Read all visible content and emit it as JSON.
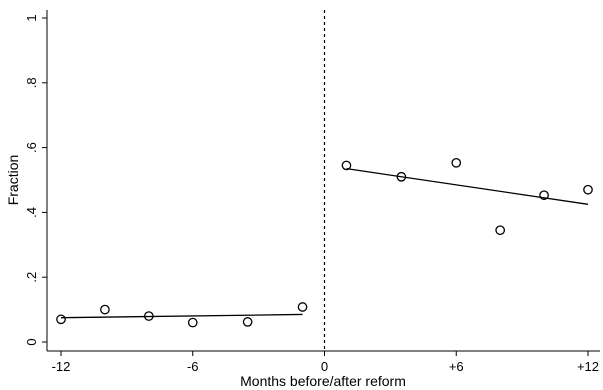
{
  "chart_data": {
    "type": "scatter",
    "title": "",
    "xlabel": "Months before/after reform",
    "ylabel": "Fraction",
    "xlim": [
      -12.5,
      12.5
    ],
    "ylim": [
      -0.02,
      1.02
    ],
    "x_ticks": [
      -12,
      -6,
      0,
      6,
      12
    ],
    "x_tick_labels": [
      "-12",
      "-6",
      "0",
      "+6",
      "+12"
    ],
    "y_ticks": [
      0,
      0.2,
      0.4,
      0.6,
      0.8,
      1
    ],
    "y_tick_labels": [
      "0",
      ".2",
      ".4",
      ".6",
      ".8",
      "1"
    ],
    "grid": false,
    "reference_line": {
      "x": 0,
      "style": "dashed"
    },
    "series": [
      {
        "points": [
          {
            "x": -12,
            "y": 0.07
          },
          {
            "x": -10,
            "y": 0.1
          },
          {
            "x": -8,
            "y": 0.08
          },
          {
            "x": -6,
            "y": 0.06
          },
          {
            "x": -3.5,
            "y": 0.062
          },
          {
            "x": -1,
            "y": 0.108
          }
        ],
        "fit": [
          [
            -12,
            0.075
          ],
          [
            -1,
            0.085
          ]
        ]
      },
      {
        "points": [
          {
            "x": 1,
            "y": 0.545
          },
          {
            "x": 3.5,
            "y": 0.51
          },
          {
            "x": 6,
            "y": 0.553
          },
          {
            "x": 8,
            "y": 0.345
          },
          {
            "x": 10,
            "y": 0.453
          },
          {
            "x": 12,
            "y": 0.47
          }
        ],
        "fit": [
          [
            1,
            0.535
          ],
          [
            12,
            0.425
          ]
        ]
      }
    ]
  }
}
